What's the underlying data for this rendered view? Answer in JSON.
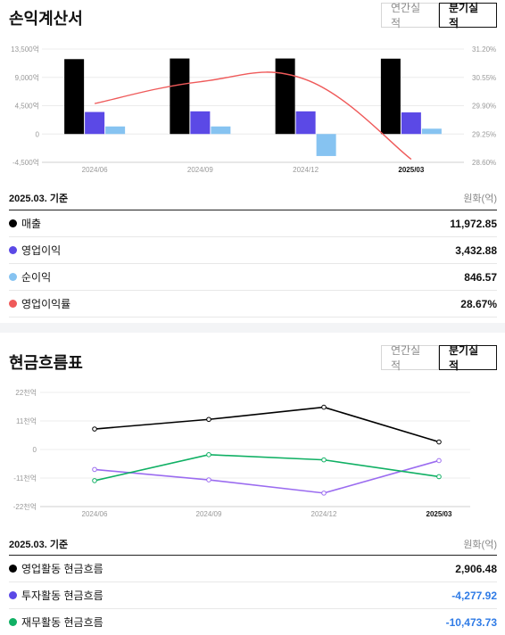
{
  "income": {
    "title": "손익계산서",
    "tabs": [
      "연간실적",
      "분기실적"
    ],
    "active_tab": "분기실적",
    "basis": "2025.03. 기준",
    "unit": "원화(억)",
    "rows": [
      {
        "label": "매출",
        "value": "11,972.85",
        "color": "#000000",
        "negative": false
      },
      {
        "label": "영업이익",
        "value": "3,432.88",
        "color": "#5b49e6",
        "negative": false
      },
      {
        "label": "순이익",
        "value": "846.57",
        "color": "#86c3f1",
        "negative": false
      },
      {
        "label": "영업이익률",
        "value": "28.67%",
        "color": "#ef5a5a",
        "negative": false
      }
    ]
  },
  "cashflow": {
    "title": "현금흐름표",
    "tabs": [
      "연간실적",
      "분기실적"
    ],
    "active_tab": "분기실적",
    "basis": "2025.03. 기준",
    "unit": "원화(억)",
    "rows": [
      {
        "label": "영업활동 현금흐름",
        "value": "2,906.48",
        "color": "#000000",
        "negative": false
      },
      {
        "label": "투자활동 현금흐름",
        "value": "-4,277.92",
        "color": "#5b49e6",
        "negative": true
      },
      {
        "label": "재무활동 현금흐름",
        "value": "-10,473.73",
        "color": "#10b064",
        "negative": true
      }
    ]
  },
  "chart_data": [
    {
      "type": "bar",
      "categories": [
        "2024/06",
        "2024/09",
        "2024/12",
        "2025/03"
      ],
      "highlight_category": "2025/03",
      "y_ticks": [
        "13,500억",
        "9,000억",
        "4,500억",
        "0",
        "-4,500억"
      ],
      "y_tick_values": [
        13500,
        9000,
        4500,
        0,
        -4500
      ],
      "ylim": [
        -4500,
        13500
      ],
      "y2_ticks": [
        "31.20%",
        "30.55%",
        "29.90%",
        "29.25%",
        "28.60%"
      ],
      "y2_tick_values": [
        31.2,
        30.55,
        29.9,
        29.25,
        28.6
      ],
      "y2lim": [
        28.6,
        31.2
      ],
      "series": [
        {
          "name": "매출",
          "values": [
            11900,
            12000,
            12000,
            11972.85
          ],
          "color": "#000000"
        },
        {
          "name": "영업이익",
          "values": [
            3500,
            3600,
            3600,
            3432.88
          ],
          "color": "#5b49e6"
        },
        {
          "name": "순이익",
          "values": [
            1200,
            1200,
            -3500,
            846.57
          ],
          "color": "#86c3f1"
        }
      ],
      "line_series": {
        "name": "영업이익률",
        "values": [
          29.95,
          30.45,
          30.5,
          28.67
        ],
        "color": "#ef5a5a",
        "axis": "right"
      },
      "grid": true
    },
    {
      "type": "line",
      "categories": [
        "2024/06",
        "2024/09",
        "2024/12",
        "2025/03"
      ],
      "highlight_category": "2025/03",
      "y_ticks": [
        "22천억",
        "11천억",
        "0",
        "-11천억",
        "-22천억"
      ],
      "y_tick_values": [
        22000,
        11000,
        0,
        -11000,
        -22000
      ],
      "ylim": [
        -22000,
        22000
      ],
      "series": [
        {
          "name": "영업활동 현금흐름",
          "values": [
            7900,
            11600,
            16300,
            2906.48
          ],
          "color": "#000000"
        },
        {
          "name": "투자활동 현금흐름",
          "values": [
            -7700,
            -11700,
            -16800,
            -4277.92
          ],
          "color": "#9b6cf0"
        },
        {
          "name": "재무활동 현금흐름",
          "values": [
            -12000,
            -2000,
            -4000,
            -10473.73
          ],
          "color": "#10b064"
        }
      ],
      "grid": true
    }
  ]
}
